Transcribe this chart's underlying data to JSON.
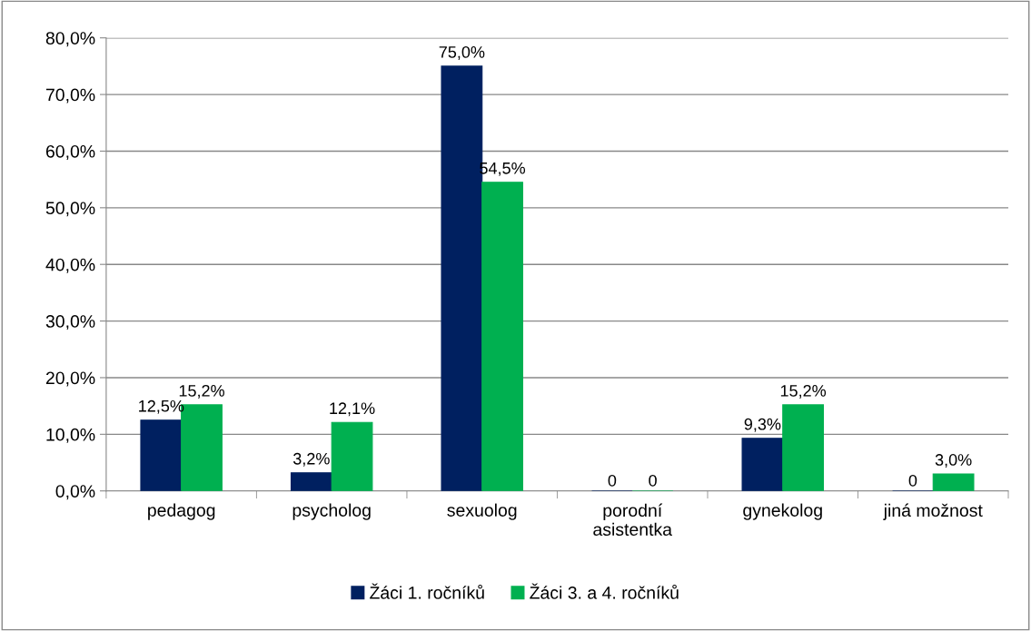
{
  "chart_data": {
    "type": "bar",
    "categories": [
      "pedagog",
      "psycholog",
      "sexuolog",
      "porodní\nasistentka",
      "gynekolog",
      "jiná možnost"
    ],
    "series": [
      {
        "name": "Žáci 1. ročníků",
        "color": "#002060",
        "values": [
          12.5,
          3.2,
          75.0,
          0,
          9.3,
          0
        ],
        "value_labels": [
          "12,5%",
          "3,2%",
          "75,0%",
          "0",
          "9,3%",
          "0"
        ]
      },
      {
        "name": "Žáci 3. a 4. ročníků",
        "color": "#00b050",
        "values": [
          15.2,
          12.1,
          54.5,
          0,
          15.2,
          3.0
        ],
        "value_labels": [
          "15,2%",
          "12,1%",
          "54,5%",
          "0",
          "15,2%",
          "3,0%"
        ]
      }
    ],
    "ylim": [
      0,
      80
    ],
    "yticks": [
      {
        "value": 0,
        "label": "0,0%"
      },
      {
        "value": 10,
        "label": "10,0%"
      },
      {
        "value": 20,
        "label": "20,0%"
      },
      {
        "value": 30,
        "label": "30,0%"
      },
      {
        "value": 40,
        "label": "40,0%"
      },
      {
        "value": 50,
        "label": "50,0%"
      },
      {
        "value": 60,
        "label": "60,0%"
      },
      {
        "value": 70,
        "label": "70,0%"
      },
      {
        "value": 80,
        "label": "80,0%"
      }
    ],
    "grid": "y",
    "legend": "bottom"
  }
}
